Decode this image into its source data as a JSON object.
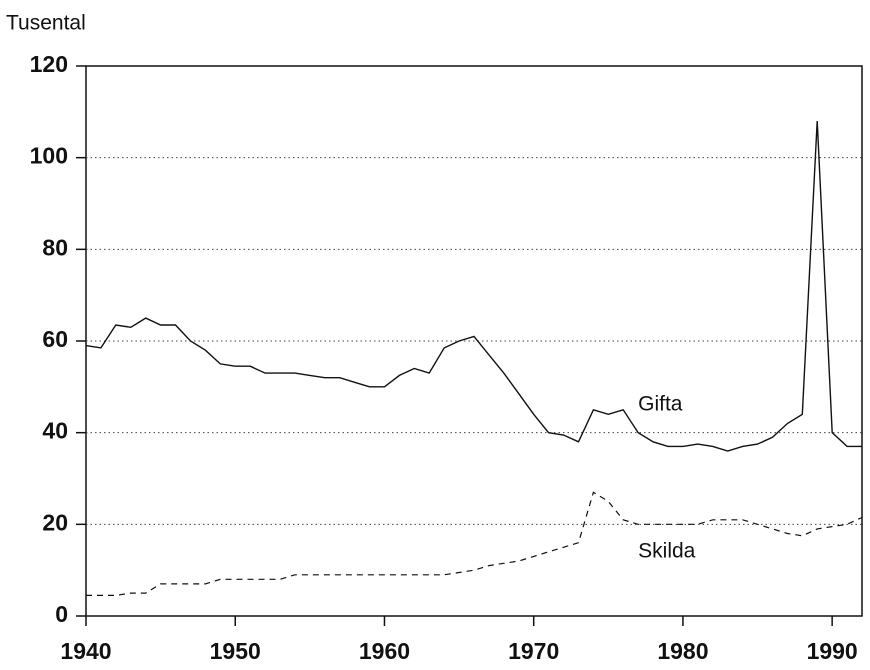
{
  "chart_data": {
    "type": "line",
    "ylabel": "Tusental",
    "x": [
      1940,
      1941,
      1942,
      1943,
      1944,
      1945,
      1946,
      1947,
      1948,
      1949,
      1950,
      1951,
      1952,
      1953,
      1954,
      1955,
      1956,
      1957,
      1958,
      1959,
      1960,
      1961,
      1962,
      1963,
      1964,
      1965,
      1966,
      1967,
      1968,
      1969,
      1970,
      1971,
      1972,
      1973,
      1974,
      1975,
      1976,
      1977,
      1978,
      1979,
      1980,
      1981,
      1982,
      1983,
      1984,
      1985,
      1986,
      1987,
      1988,
      1989,
      1990,
      1991,
      1992
    ],
    "series": [
      {
        "name": "Gifta",
        "color": "#111111",
        "dash": false,
        "values": [
          59,
          58.5,
          63.5,
          63,
          65,
          63.5,
          63.5,
          60,
          58,
          55,
          54.5,
          54.5,
          53,
          53,
          53,
          52.5,
          52,
          52,
          51,
          50,
          50,
          52.5,
          54,
          53,
          58.5,
          60,
          61,
          57,
          53,
          48.5,
          44,
          40,
          39.5,
          38,
          45,
          44,
          45,
          40,
          38,
          37,
          37,
          37.5,
          37,
          36,
          37,
          37.5,
          39,
          42,
          44,
          108,
          40,
          37,
          37
        ]
      },
      {
        "name": "Skilda",
        "color": "#111111",
        "dash": true,
        "values": [
          4.5,
          4.5,
          4.5,
          5,
          5,
          7,
          7,
          7,
          7,
          8,
          8,
          8,
          8,
          8,
          9,
          9,
          9,
          9,
          9,
          9,
          9,
          9,
          9,
          9,
          9,
          9.5,
          10,
          11,
          11.5,
          12,
          13,
          14,
          15,
          16,
          27,
          25,
          21,
          20,
          20,
          20,
          20,
          20,
          21,
          21,
          21,
          20,
          19,
          18,
          17.5,
          19,
          19.5,
          20,
          21.5
        ]
      }
    ],
    "xlim": [
      1940,
      1992
    ],
    "xticks": [
      1940,
      1950,
      1960,
      1970,
      1980,
      1990
    ],
    "ylim": [
      0,
      120
    ],
    "yticks": [
      0,
      20,
      40,
      60,
      80,
      100,
      120
    ],
    "grid": true
  }
}
